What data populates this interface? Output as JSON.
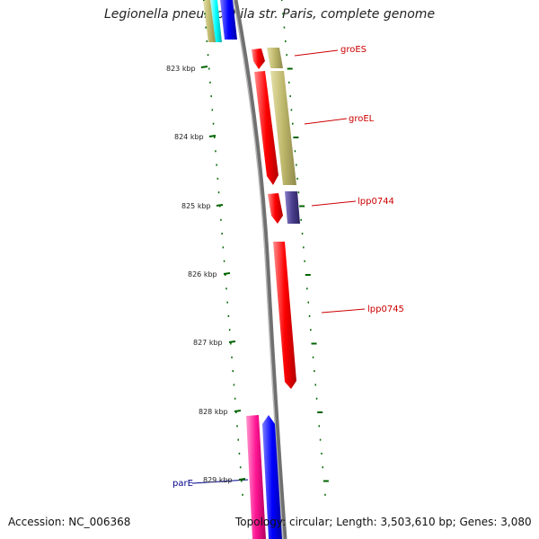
{
  "title": "Legionella pneumophila str. Paris, complete genome",
  "accession": "Accession: NC_006368",
  "summary": "Topology: circular; Length: 3,503,610 bp; Genes: 3,080",
  "kbp_labels": [
    "823 kbp",
    "824 kbp",
    "825 kbp",
    "826 kbp",
    "827 kbp",
    "828 kbp",
    "829 kbp"
  ],
  "gene_labels": [
    "groES",
    "groEL",
    "lpp0744",
    "lpp0745",
    "parE"
  ],
  "colors": {
    "backbone": "#808080",
    "cds_red": "#ff0000",
    "khaki": "#bdb76b",
    "slate": "#483d8b",
    "blue": "#0000ff",
    "pink": "#ff1493",
    "cyan": "#00ffff",
    "tick_green": "#006400",
    "gene_label_red": "#cc0000",
    "gene_label_blue": "#00008b"
  }
}
